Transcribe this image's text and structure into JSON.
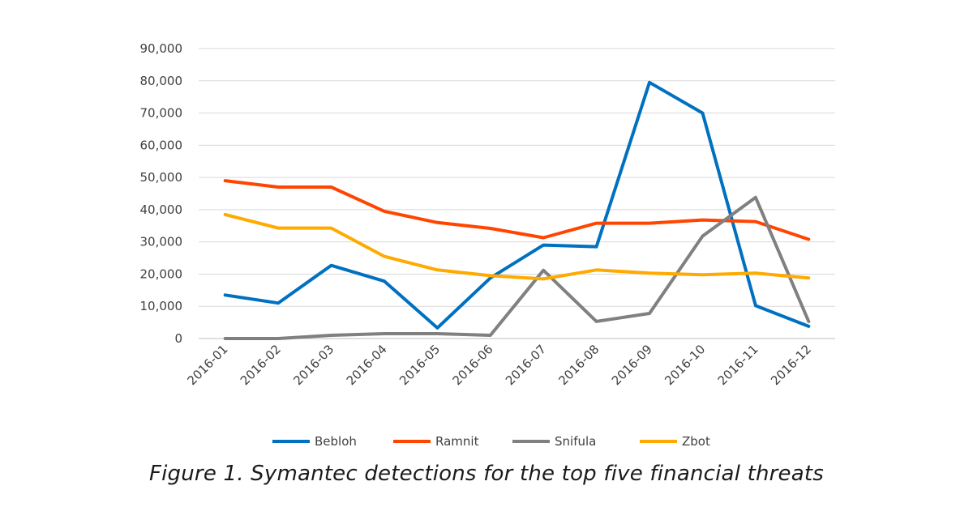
{
  "caption": "Figure 1. Symantec detections for the top five financial threats",
  "chart_data": {
    "type": "line",
    "title": "",
    "xlabel": "",
    "ylabel": "",
    "categories": [
      "2016-01",
      "2016-02",
      "2016-03",
      "2016-04",
      "2016-05",
      "2016-06",
      "2016-07",
      "2016-08",
      "2016-09",
      "2016-10",
      "2016-11",
      "2016-12"
    ],
    "y_ticks": [
      "0",
      "10,000",
      "20,000",
      "30,000",
      "40,000",
      "50,000",
      "60,000",
      "70,000",
      "80,000",
      "90,000"
    ],
    "ylim": [
      0,
      90000
    ],
    "grid": true,
    "legend_position": "bottom",
    "series": [
      {
        "name": "Bebloh",
        "color": "#0070C0",
        "values": [
          13500,
          11000,
          22700,
          17800,
          3300,
          18800,
          29000,
          28500,
          79500,
          70000,
          10200,
          3800
        ]
      },
      {
        "name": "Ramnit",
        "color": "#FF4500",
        "values": [
          49000,
          47000,
          47000,
          39500,
          36000,
          34200,
          31300,
          35800,
          35800,
          36800,
          36300,
          30800
        ]
      },
      {
        "name": "Snifula",
        "color": "#808080",
        "values": [
          0,
          0,
          1000,
          1500,
          1500,
          1000,
          21200,
          5300,
          7800,
          31800,
          43800,
          5300
        ]
      },
      {
        "name": "Zbot",
        "color": "#FFAA00",
        "values": [
          38500,
          34300,
          34300,
          25500,
          21300,
          19500,
          18500,
          21300,
          20300,
          19800,
          20300,
          18800
        ]
      }
    ]
  }
}
